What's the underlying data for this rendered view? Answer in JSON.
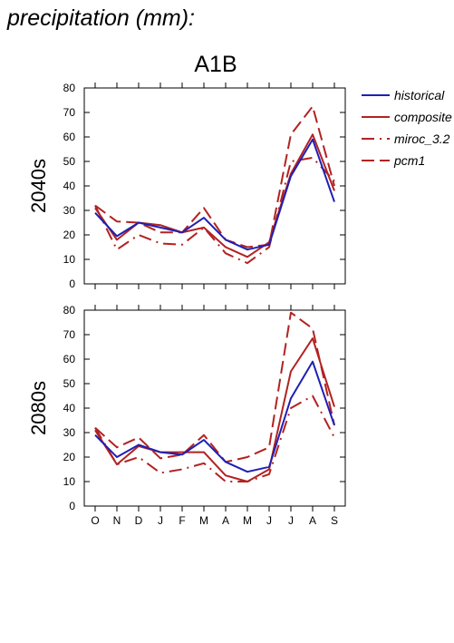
{
  "header": {
    "title": "precipitation (mm):",
    "scenario": "A1B"
  },
  "colors": {
    "historical": "#1f1fb4",
    "composite": "#b22222",
    "miroc_3.2": "#b22222",
    "pcm1": "#b22222"
  },
  "chart_data": [
    {
      "type": "line",
      "row_label": "2040s",
      "categories": [
        "O",
        "N",
        "D",
        "J",
        "F",
        "M",
        "A",
        "M",
        "J",
        "J",
        "A",
        "S"
      ],
      "ylim": [
        0,
        80
      ],
      "yticks": [
        0,
        10,
        20,
        30,
        40,
        50,
        60,
        70,
        80
      ],
      "grid": false,
      "legend": "right",
      "series": [
        {
          "name": "historical",
          "style": "solid",
          "values": [
            29,
            19.5,
            25,
            23,
            21,
            27,
            18,
            14,
            16,
            44,
            59,
            33.5
          ]
        },
        {
          "name": "composite",
          "style": "solid",
          "values": [
            31,
            18,
            25,
            24,
            21,
            23,
            15,
            11,
            17,
            45,
            61,
            38
          ]
        },
        {
          "name": "miroc_3.2",
          "style": "dashdot",
          "values": [
            32,
            14,
            20,
            16.5,
            16,
            23,
            12.5,
            8.5,
            15,
            50,
            51.5,
            42
          ]
        },
        {
          "name": "pcm1",
          "style": "dashed",
          "values": [
            32,
            25.5,
            25,
            21,
            21,
            31,
            18,
            15,
            16,
            61,
            72.5,
            40
          ]
        }
      ]
    },
    {
      "type": "line",
      "row_label": "2080s",
      "categories": [
        "O",
        "N",
        "D",
        "J",
        "F",
        "M",
        "A",
        "M",
        "J",
        "J",
        "A",
        "S"
      ],
      "ylim": [
        0,
        80
      ],
      "yticks": [
        0,
        10,
        20,
        30,
        40,
        50,
        60,
        70,
        80
      ],
      "grid": false,
      "legend": "none",
      "series": [
        {
          "name": "historical",
          "style": "solid",
          "values": [
            29,
            20,
            25,
            22,
            21,
            27,
            18,
            14,
            16,
            44,
            59,
            33
          ]
        },
        {
          "name": "composite",
          "style": "solid",
          "values": [
            31,
            17,
            24.5,
            22,
            22,
            22,
            12.5,
            10,
            15,
            55,
            68.5,
            40.5
          ]
        },
        {
          "name": "miroc_3.2",
          "style": "dashdot",
          "values": [
            32,
            17,
            20,
            13.5,
            15,
            17.5,
            10,
            10,
            13,
            40,
            45,
            28
          ]
        },
        {
          "name": "pcm1",
          "style": "dashed",
          "values": [
            32,
            24,
            28,
            19.5,
            21,
            29,
            18,
            20,
            24,
            79,
            72.5,
            33
          ]
        }
      ]
    }
  ],
  "legend": {
    "items": [
      "historical",
      "composite",
      "miroc_3.2",
      "pcm1"
    ]
  }
}
